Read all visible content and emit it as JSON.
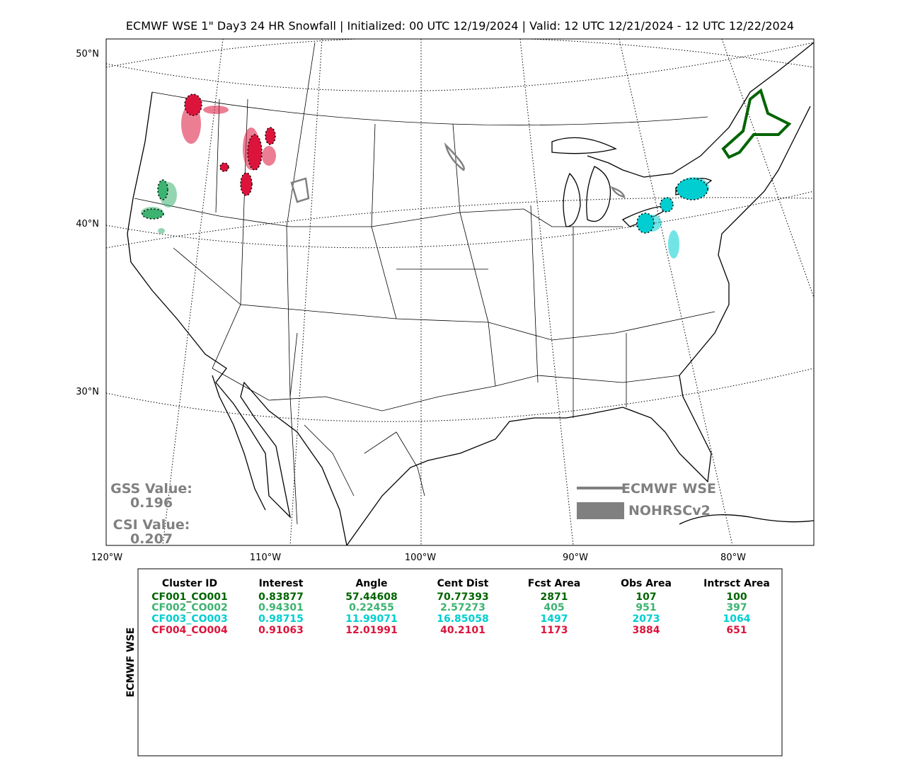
{
  "title": "ECMWF WSE 1\" Day3 24 HR Snowfall | Initialized: 00 UTC 12/19/2024 | Valid: 12 UTC 12/21/2024 - 12 UTC 12/22/2024",
  "map": {
    "lat_labels": [
      "50°N",
      "40°N",
      "30°N"
    ],
    "lon_labels": [
      "120°W",
      "110°W",
      "100°W",
      "90°W",
      "80°W"
    ]
  },
  "scores": {
    "gss_label": "GSS Value:",
    "gss_value": 0.196,
    "csi_label": "CSI Value:",
    "csi_value": 0.207
  },
  "legend": [
    {
      "label": "ECMWF WSE",
      "color": "#808080"
    },
    {
      "label": "NOHRSCv2",
      "color": "#808080"
    }
  ],
  "table": {
    "side_label": "ECMWF WSE",
    "columns": [
      "Cluster ID",
      "Interest",
      "Angle",
      "Cent Dist",
      "Fcst Area",
      "Obs Area",
      "Intrsct Area"
    ],
    "rows": [
      [
        "CF001_CO001",
        0.83877,
        57.44608,
        70.77393,
        2871,
        107,
        100
      ],
      [
        "CF002_CO002",
        0.94301,
        0.22455,
        2.57273,
        405,
        951,
        397
      ],
      [
        "CF003_CO003",
        0.98715,
        11.99071,
        16.85058,
        1497,
        2073,
        1064
      ],
      [
        "CF004_CO004",
        0.91063,
        12.01991,
        40.2101,
        1173,
        3884,
        651
      ]
    ],
    "row_colors": [
      "#006400",
      "#3cb371",
      "#00ced1",
      "#dc143c"
    ]
  }
}
